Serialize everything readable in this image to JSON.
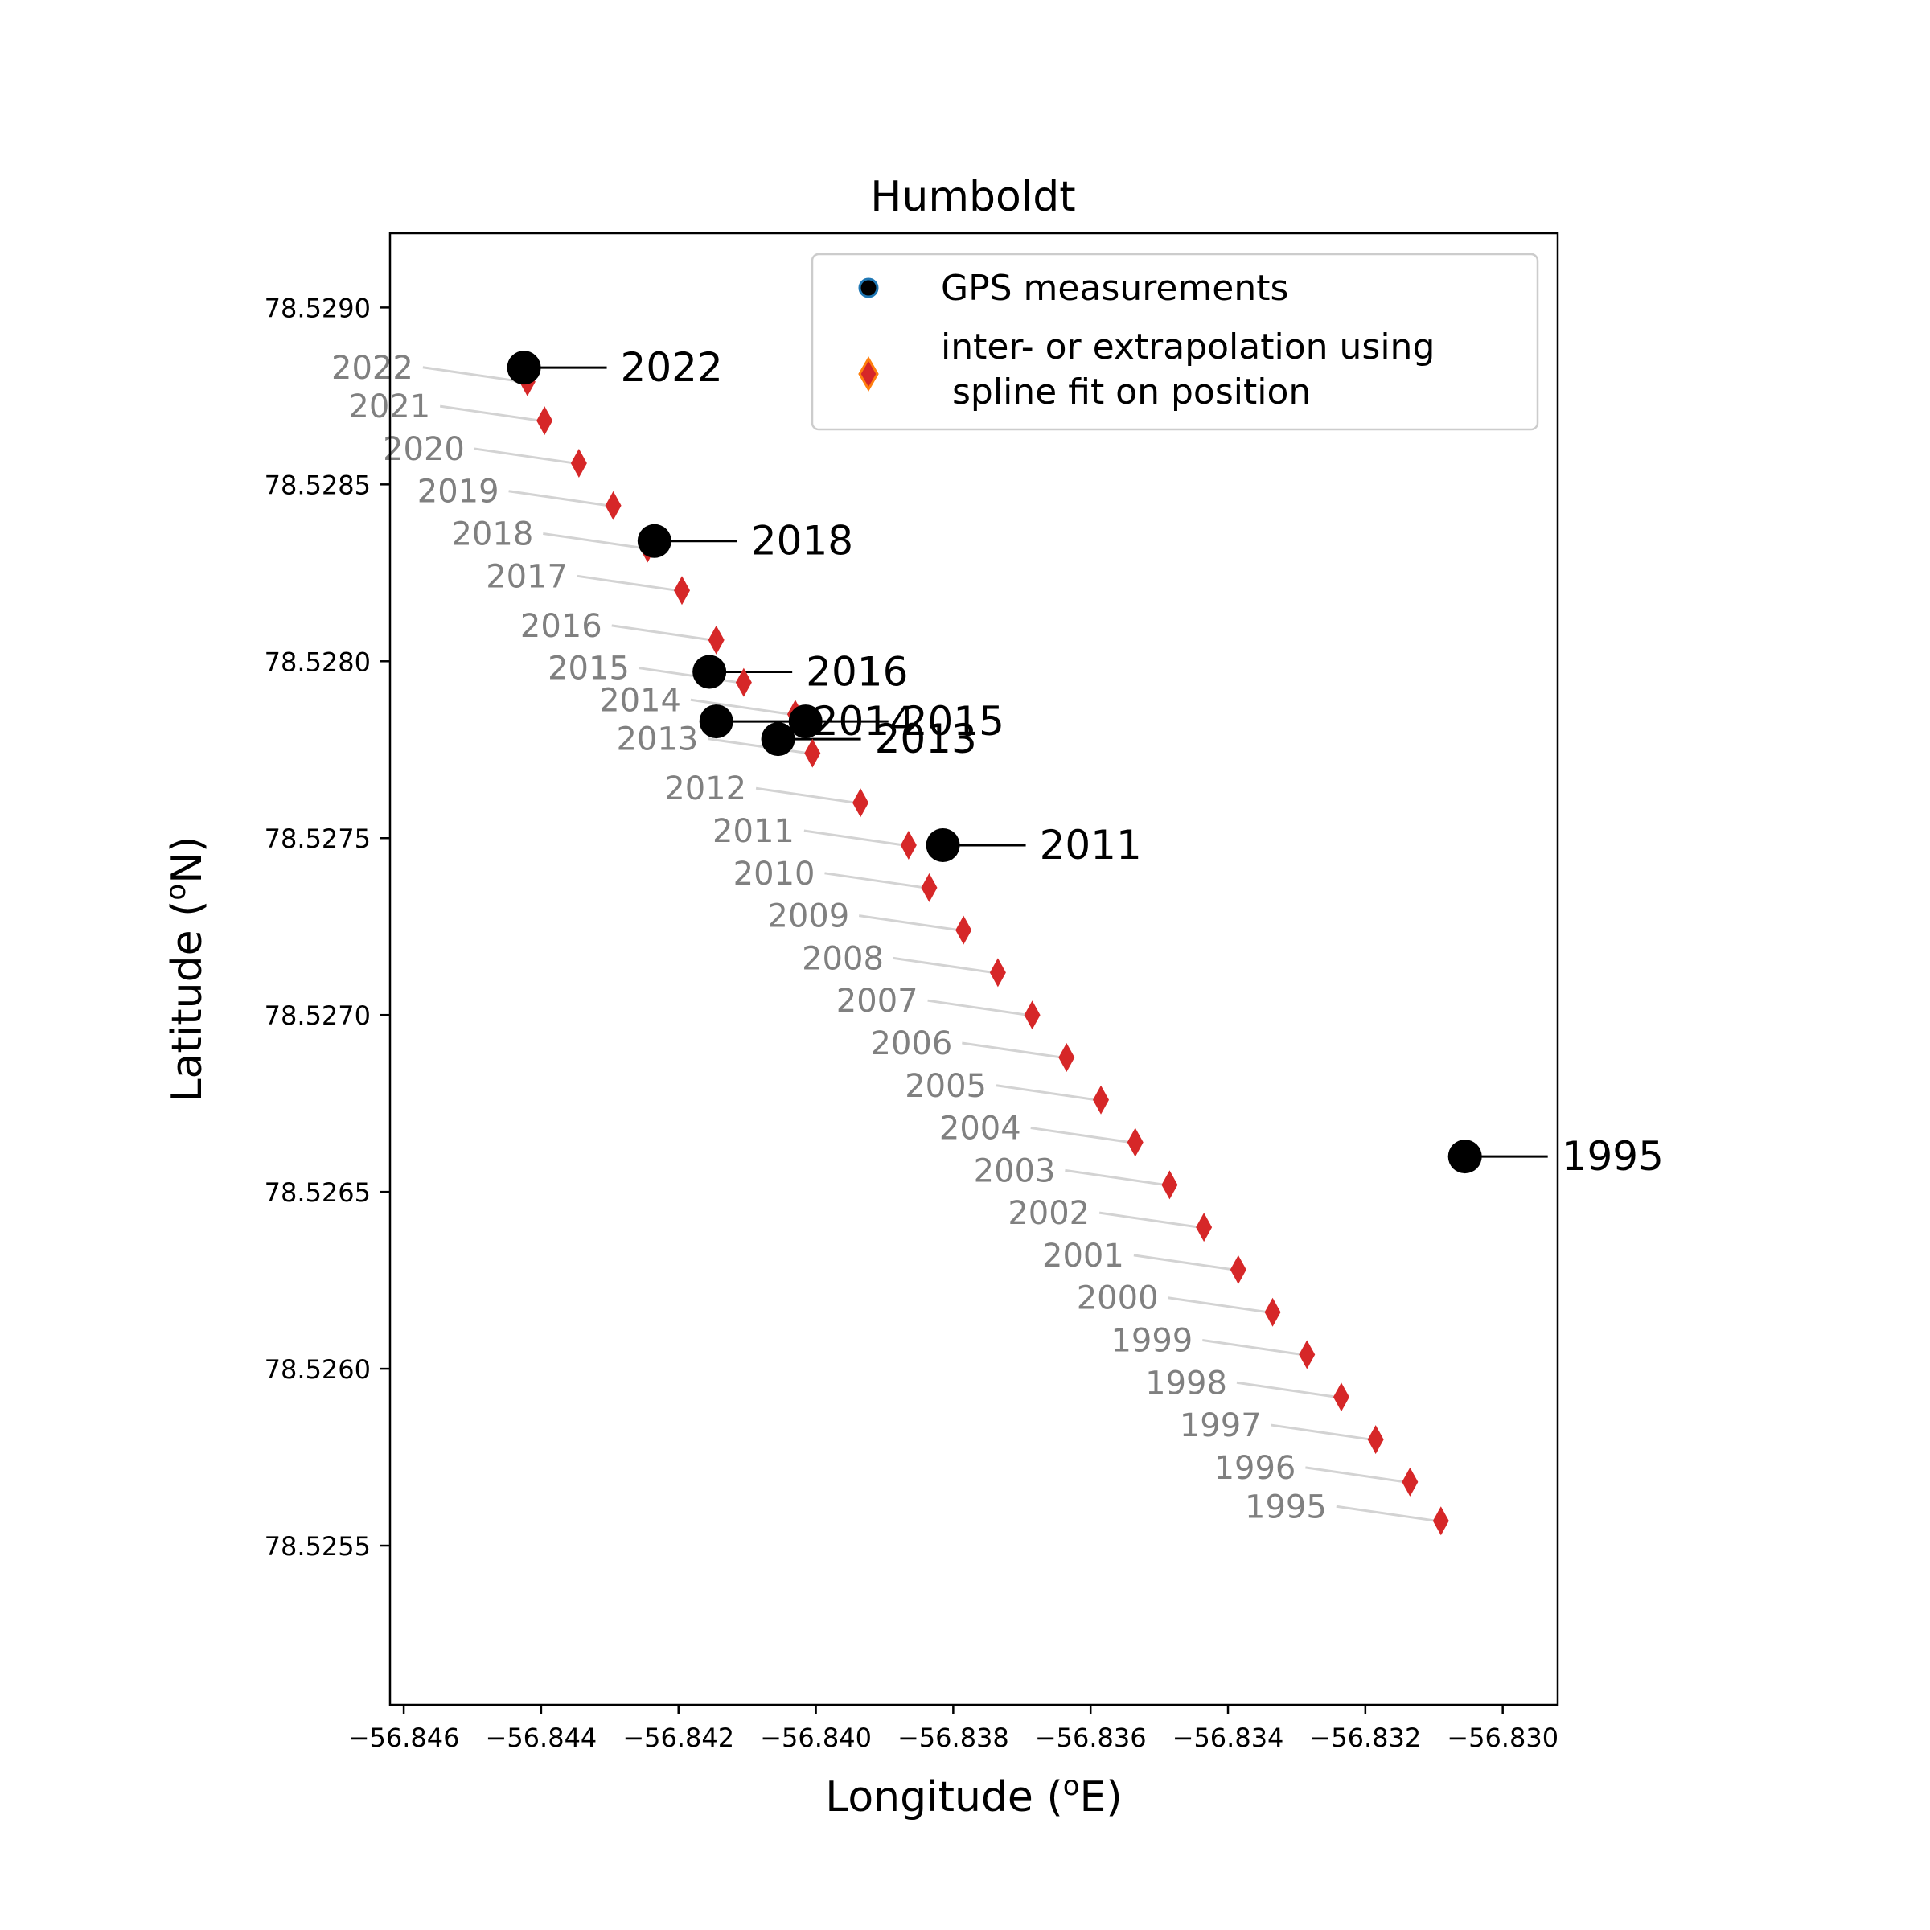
{
  "chart_data": {
    "type": "scatter",
    "title": "Humboldt",
    "xlabel_main": "Longitude (",
    "xlabel_sup": "o",
    "xlabel_end": "E)",
    "ylabel_main": "Latitude (",
    "ylabel_sup": "o",
    "ylabel_end": "N)",
    "xlim": [
      -56.8462,
      -56.8292
    ],
    "ylim": [
      78.52505,
      78.52921
    ],
    "xticks": [
      -56.846,
      -56.844,
      -56.842,
      -56.84,
      -56.838,
      -56.836,
      -56.834,
      -56.832,
      -56.83
    ],
    "xtick_labels": [
      "−56.846",
      "−56.844",
      "−56.842",
      "−56.840",
      "−56.838",
      "−56.836",
      "−56.834",
      "−56.832",
      "−56.830"
    ],
    "yticks": [
      78.5255,
      78.526,
      78.5265,
      78.527,
      78.5275,
      78.528,
      78.5285,
      78.529
    ],
    "ytick_labels": [
      "78.5255",
      "78.5260",
      "78.5265",
      "78.5270",
      "78.5275",
      "78.5280",
      "78.5285",
      "78.5290"
    ],
    "grid": false,
    "legend_position": "top-right",
    "legend": [
      {
        "label": "GPS measurements",
        "color": "#000000",
        "edge": "#1f77b4",
        "marker": "circle"
      },
      {
        "label": "inter- or extrapolation using\n spline fit on position",
        "color": "#d62728",
        "edge": "#ff7f0e",
        "marker": "diamond"
      }
    ],
    "series": [
      {
        "name": "GPS measurements",
        "color": "#000000",
        "points": [
          {
            "label": "2022",
            "x": -56.84425,
            "y": 78.52883
          },
          {
            "label": "2018",
            "x": -56.84235,
            "y": 78.52834
          },
          {
            "label": "2016",
            "x": -56.84155,
            "y": 78.52797
          },
          {
            "label": "2015",
            "x": -56.84015,
            "y": 78.52783
          },
          {
            "label": "2014",
            "x": -56.84145,
            "y": 78.52783
          },
          {
            "label": "2013",
            "x": -56.84055,
            "y": 78.52778
          },
          {
            "label": "2011",
            "x": -56.83815,
            "y": 78.52748
          },
          {
            "label": "1995",
            "x": -56.83055,
            "y": 78.5266
          }
        ]
      },
      {
        "name": "inter- or extrapolation using spline fit on position",
        "color": "#d62728",
        "points": [
          {
            "label": "2022",
            "x": -56.8442,
            "y": 78.52879
          },
          {
            "label": "2021",
            "x": -56.84395,
            "y": 78.52868
          },
          {
            "label": "2020",
            "x": -56.84345,
            "y": 78.52856
          },
          {
            "label": "2019",
            "x": -56.84295,
            "y": 78.52844
          },
          {
            "label": "2018",
            "x": -56.84245,
            "y": 78.52832
          },
          {
            "label": "2017",
            "x": -56.84195,
            "y": 78.5282
          },
          {
            "label": "2016",
            "x": -56.84145,
            "y": 78.52806
          },
          {
            "label": "2015",
            "x": -56.84105,
            "y": 78.52794
          },
          {
            "label": "2014",
            "x": -56.8403,
            "y": 78.52785
          },
          {
            "label": "2013",
            "x": -56.84005,
            "y": 78.52774
          },
          {
            "label": "2012",
            "x": -56.83935,
            "y": 78.5276
          },
          {
            "label": "2011",
            "x": -56.83865,
            "y": 78.52748
          },
          {
            "label": "2010",
            "x": -56.83835,
            "y": 78.52736
          },
          {
            "label": "2009",
            "x": -56.83785,
            "y": 78.52724
          },
          {
            "label": "2008",
            "x": -56.83735,
            "y": 78.52712
          },
          {
            "label": "2007",
            "x": -56.83685,
            "y": 78.527
          },
          {
            "label": "2006",
            "x": -56.83635,
            "y": 78.52688
          },
          {
            "label": "2005",
            "x": -56.83585,
            "y": 78.52676
          },
          {
            "label": "2004",
            "x": -56.83535,
            "y": 78.52664
          },
          {
            "label": "2003",
            "x": -56.83485,
            "y": 78.52652
          },
          {
            "label": "2002",
            "x": -56.83435,
            "y": 78.5264
          },
          {
            "label": "2001",
            "x": -56.83385,
            "y": 78.52628
          },
          {
            "label": "2000",
            "x": -56.83335,
            "y": 78.52616
          },
          {
            "label": "1999",
            "x": -56.83285,
            "y": 78.52604
          },
          {
            "label": "1998",
            "x": -56.83235,
            "y": 78.52592
          },
          {
            "label": "1997",
            "x": -56.83185,
            "y": 78.5258
          },
          {
            "label": "1996",
            "x": -56.83135,
            "y": 78.52568
          },
          {
            "label": "1995",
            "x": -56.8309,
            "y": 78.52557
          }
        ]
      }
    ]
  }
}
